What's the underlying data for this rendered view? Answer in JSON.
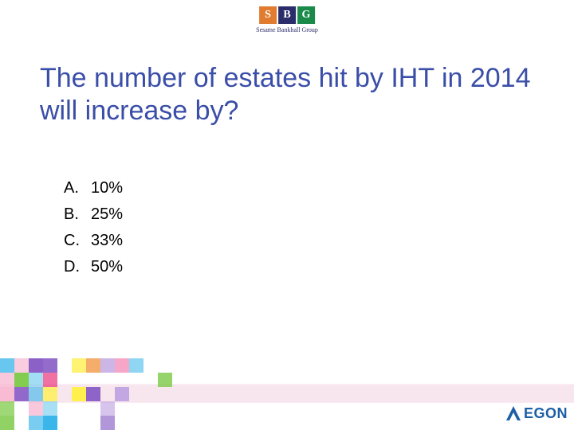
{
  "header": {
    "logo_letters": [
      "S",
      "B",
      "G"
    ],
    "logo_colors": [
      "#e07b2f",
      "#2a2d6a",
      "#1a8a4a"
    ],
    "subtitle": "Sesame Bankhall Group"
  },
  "question": {
    "title": "The number of estates hit by IHT in 2014 will increase by?",
    "title_color": "#3a4ea8",
    "title_fontsize": 34
  },
  "options": [
    {
      "letter": "A.",
      "text": "10%"
    },
    {
      "letter": "B.",
      "text": "25%"
    },
    {
      "letter": "C.",
      "text": "33%"
    },
    {
      "letter": "D.",
      "text": "50%"
    }
  ],
  "footer": {
    "brand": "EGON",
    "brand_color": "#1b5fa6"
  },
  "mosaic": {
    "palette": [
      "#e9347a",
      "#f06aa0",
      "#f7b6d0",
      "#7ac943",
      "#b3e08a",
      "#fff04a",
      "#8a5fc7",
      "#b99be0",
      "#29b0e8",
      "#7fd0f0",
      "#f08c2e",
      "#ffffff"
    ],
    "cols": 24,
    "rows": 5,
    "cell": 18
  }
}
